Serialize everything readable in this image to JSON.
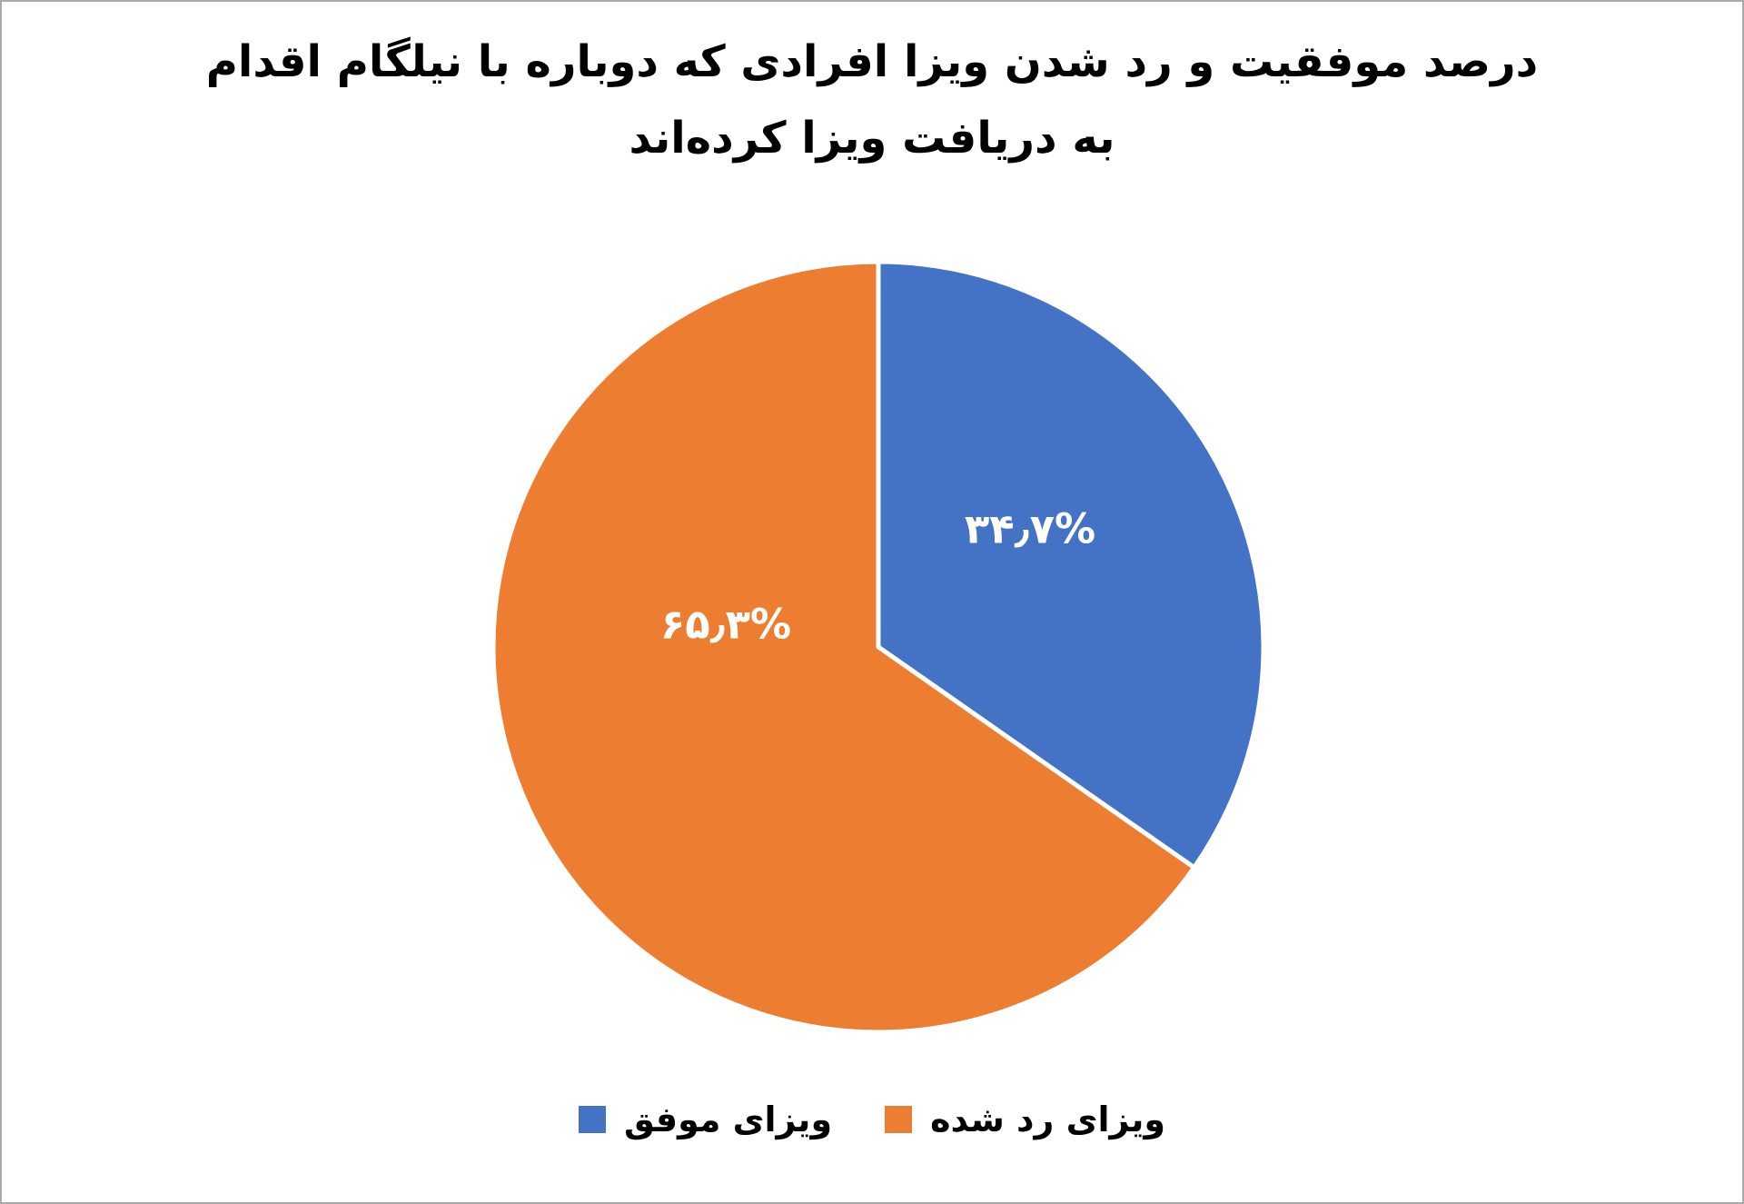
{
  "chart_data": {
    "type": "pie",
    "title_line1": "درصد موفقیت و رد شدن ویزا افرادی که دوباره با نیلگام اقدام",
    "title_line2": "به دریافت ویزا کرده‌اند",
    "start_angle_deg": 0,
    "direction": "clockwise",
    "legend_position": "bottom",
    "divider_color": "#ffffff",
    "slices": [
      {
        "key": "successful-visa",
        "name": "ویزای موفق",
        "value": 34.7,
        "data_label": "۳۴٫۷%",
        "color": "#4472C4"
      },
      {
        "key": "rejected-visa",
        "name": "ویزای رد شده",
        "value": 65.3,
        "data_label": "۶۵٫۳%",
        "color": "#ED7D31"
      }
    ],
    "legend_items": [
      {
        "key": "rejected-visa",
        "label": "ویزای رد شده",
        "color": "#ED7D31"
      },
      {
        "key": "successful-visa",
        "label": "ویزای موفق",
        "color": "#4472C4"
      }
    ]
  }
}
